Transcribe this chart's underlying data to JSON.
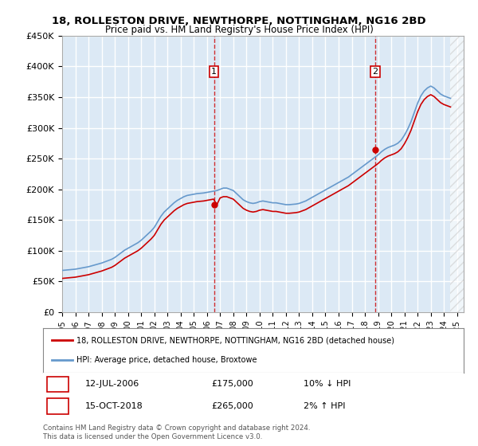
{
  "title": "18, ROLLESTON DRIVE, NEWTHORPE, NOTTINGHAM, NG16 2BD",
  "subtitle": "Price paid vs. HM Land Registry's House Price Index (HPI)",
  "ylabel_ticks": [
    "£0",
    "£50K",
    "£100K",
    "£150K",
    "£200K",
    "£250K",
    "£300K",
    "£350K",
    "£400K",
    "£450K"
  ],
  "ytick_vals": [
    0,
    50000,
    100000,
    150000,
    200000,
    250000,
    300000,
    350000,
    400000,
    450000
  ],
  "ylim": [
    0,
    450000
  ],
  "xlim_start": 1995.0,
  "xlim_end": 2025.5,
  "background_color": "#dce9f5",
  "plot_bg": "#dce9f5",
  "grid_color": "#ffffff",
  "sale1_x": 2006.54,
  "sale1_y": 175000,
  "sale1_label": "12-JUL-2006",
  "sale1_price": "£175,000",
  "sale1_hpi": "10% ↓ HPI",
  "sale2_x": 2018.79,
  "sale2_y": 265000,
  "sale2_label": "15-OCT-2018",
  "sale2_price": "£265,000",
  "sale2_hpi": "2% ↑ HPI",
  "red_line_color": "#cc0000",
  "blue_line_color": "#6699cc",
  "marker_box_color": "#cc0000",
  "dashed_line_color": "#cc0000",
  "legend_label_red": "18, ROLLESTON DRIVE, NEWTHORPE, NOTTINGHAM, NG16 2BD (detached house)",
  "legend_label_blue": "HPI: Average price, detached house, Broxtowe",
  "footer": "Contains HM Land Registry data © Crown copyright and database right 2024.\nThis data is licensed under the Open Government Licence v3.0.",
  "hpi_years": [
    1995.0,
    1995.25,
    1995.5,
    1995.75,
    1996.0,
    1996.25,
    1996.5,
    1996.75,
    1997.0,
    1997.25,
    1997.5,
    1997.75,
    1998.0,
    1998.25,
    1998.5,
    1998.75,
    1999.0,
    1999.25,
    1999.5,
    1999.75,
    2000.0,
    2000.25,
    2000.5,
    2000.75,
    2001.0,
    2001.25,
    2001.5,
    2001.75,
    2002.0,
    2002.25,
    2002.5,
    2002.75,
    2003.0,
    2003.25,
    2003.5,
    2003.75,
    2004.0,
    2004.25,
    2004.5,
    2004.75,
    2005.0,
    2005.25,
    2005.5,
    2005.75,
    2006.0,
    2006.25,
    2006.5,
    2006.75,
    2007.0,
    2007.25,
    2007.5,
    2007.75,
    2008.0,
    2008.25,
    2008.5,
    2008.75,
    2009.0,
    2009.25,
    2009.5,
    2009.75,
    2010.0,
    2010.25,
    2010.5,
    2010.75,
    2011.0,
    2011.25,
    2011.5,
    2011.75,
    2012.0,
    2012.25,
    2012.5,
    2012.75,
    2013.0,
    2013.25,
    2013.5,
    2013.75,
    2014.0,
    2014.25,
    2014.5,
    2014.75,
    2015.0,
    2015.25,
    2015.5,
    2015.75,
    2016.0,
    2016.25,
    2016.5,
    2016.75,
    2017.0,
    2017.25,
    2017.5,
    2017.75,
    2018.0,
    2018.25,
    2018.5,
    2018.75,
    2019.0,
    2019.25,
    2019.5,
    2019.75,
    2020.0,
    2020.25,
    2020.5,
    2020.75,
    2021.0,
    2021.25,
    2021.5,
    2021.75,
    2022.0,
    2022.25,
    2022.5,
    2022.75,
    2023.0,
    2023.25,
    2023.5,
    2023.75,
    2024.0,
    2024.25,
    2024.5
  ],
  "hpi_values": [
    68000,
    68500,
    69000,
    69500,
    70000,
    71000,
    72000,
    73000,
    74000,
    75500,
    77000,
    78500,
    80000,
    82000,
    84000,
    86000,
    89000,
    93000,
    97000,
    101000,
    104000,
    107000,
    110000,
    113000,
    117000,
    122000,
    127000,
    132000,
    138000,
    147000,
    156000,
    163000,
    168000,
    173000,
    178000,
    182000,
    185000,
    188000,
    190000,
    191000,
    192000,
    193000,
    193500,
    194000,
    195000,
    196000,
    197000,
    198000,
    200000,
    202000,
    202000,
    200000,
    198000,
    193000,
    188000,
    183000,
    180000,
    178000,
    177000,
    178000,
    180000,
    181000,
    180000,
    179000,
    178000,
    178000,
    177000,
    176000,
    175000,
    175000,
    175500,
    176000,
    177000,
    179000,
    181000,
    184000,
    187000,
    190000,
    193000,
    196000,
    199000,
    202000,
    205000,
    208000,
    211000,
    214000,
    217000,
    220000,
    224000,
    228000,
    232000,
    236000,
    240000,
    244000,
    248000,
    252000,
    256000,
    261000,
    265000,
    268000,
    270000,
    272000,
    275000,
    280000,
    288000,
    298000,
    310000,
    325000,
    340000,
    352000,
    360000,
    365000,
    368000,
    365000,
    360000,
    355000,
    352000,
    350000,
    348000
  ],
  "red_years": [
    1995.0,
    1995.25,
    1995.5,
    1995.75,
    1996.0,
    1996.25,
    1996.5,
    1996.75,
    1997.0,
    1997.25,
    1997.5,
    1997.75,
    1998.0,
    1998.25,
    1998.5,
    1998.75,
    1999.0,
    1999.25,
    1999.5,
    1999.75,
    2000.0,
    2000.25,
    2000.5,
    2000.75,
    2001.0,
    2001.25,
    2001.5,
    2001.75,
    2002.0,
    2002.25,
    2002.5,
    2002.75,
    2003.0,
    2003.25,
    2003.5,
    2003.75,
    2004.0,
    2004.25,
    2004.5,
    2004.75,
    2005.0,
    2005.25,
    2005.5,
    2005.75,
    2006.0,
    2006.25,
    2006.5,
    2006.75,
    2007.0,
    2007.25,
    2007.5,
    2007.75,
    2008.0,
    2008.25,
    2008.5,
    2008.75,
    2009.0,
    2009.25,
    2009.5,
    2009.75,
    2010.0,
    2010.25,
    2010.5,
    2010.75,
    2011.0,
    2011.25,
    2011.5,
    2011.75,
    2012.0,
    2012.25,
    2012.5,
    2012.75,
    2013.0,
    2013.25,
    2013.5,
    2013.75,
    2014.0,
    2014.25,
    2014.5,
    2014.75,
    2015.0,
    2015.25,
    2015.5,
    2015.75,
    2016.0,
    2016.25,
    2016.5,
    2016.75,
    2017.0,
    2017.25,
    2017.5,
    2017.75,
    2018.0,
    2018.25,
    2018.5,
    2018.75,
    2019.0,
    2019.25,
    2019.5,
    2019.75,
    2020.0,
    2020.25,
    2020.5,
    2020.75,
    2021.0,
    2021.25,
    2021.5,
    2021.75,
    2022.0,
    2022.25,
    2022.5,
    2022.75,
    2023.0,
    2023.25,
    2023.5,
    2023.75,
    2024.0,
    2024.25,
    2024.5
  ],
  "red_values": [
    55000,
    55500,
    56000,
    56500,
    57000,
    58000,
    59000,
    60000,
    61000,
    62500,
    64000,
    65500,
    67000,
    69000,
    71000,
    73000,
    76000,
    80000,
    84000,
    88000,
    91000,
    94000,
    97000,
    100000,
    104000,
    109000,
    114000,
    119000,
    125000,
    134000,
    143000,
    150000,
    155000,
    160000,
    165000,
    169000,
    172000,
    175000,
    177000,
    178000,
    179000,
    180000,
    180500,
    181000,
    182000,
    183000,
    184000,
    175000,
    186000,
    188000,
    188000,
    186000,
    184000,
    179000,
    174000,
    169000,
    166000,
    164000,
    163000,
    164000,
    166000,
    167000,
    166000,
    165000,
    164000,
    164000,
    163000,
    162000,
    161000,
    161000,
    161500,
    162000,
    163000,
    165000,
    167000,
    170000,
    173000,
    176000,
    179000,
    182000,
    185000,
    188000,
    191000,
    194000,
    197000,
    200000,
    203000,
    206000,
    210000,
    214000,
    218000,
    222000,
    226000,
    230000,
    234000,
    238000,
    242000,
    247000,
    251000,
    254000,
    256000,
    258000,
    261000,
    266000,
    274000,
    284000,
    296000,
    311000,
    326000,
    338000,
    346000,
    351000,
    354000,
    351000,
    346000,
    341000,
    338000,
    336000,
    334000
  ]
}
